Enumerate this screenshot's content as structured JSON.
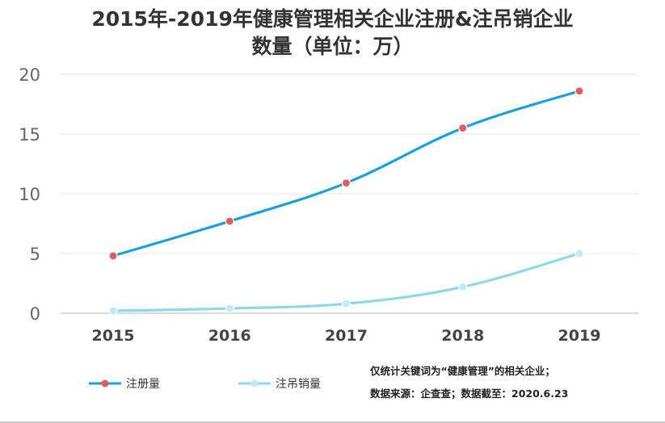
{
  "chart_data": {
    "type": "line",
    "title": "2015年-2019年健康管理相关企业注册&注吊销企业",
    "subtitle": "数量（单位：万）",
    "categories": [
      "2015",
      "2016",
      "2017",
      "2018",
      "2019"
    ],
    "y_ticks": [
      "0",
      "5",
      "10",
      "15",
      "20"
    ],
    "ylim": [
      0,
      20
    ],
    "grid": true,
    "legend_position": "bottom-left",
    "series": [
      {
        "name": "注册量",
        "values": [
          4.8,
          7.7,
          10.9,
          15.5,
          18.6
        ],
        "color": "#1a9fe0",
        "marker_color": "#e85a5a"
      },
      {
        "name": "注吊销量",
        "values": [
          0.2,
          0.4,
          0.8,
          2.2,
          5.0
        ],
        "color": "#8fd8ec",
        "marker_color": "#bfeaf7"
      }
    ]
  },
  "notes": {
    "line1": "仅统计关键词为“健康管理”的相关企业；",
    "line2": "数据来源：企查查；数据截至：2020.6.23"
  },
  "colors": {
    "title": "#333333",
    "axis_label": "#666666",
    "grid": "#e6e6e6"
  }
}
